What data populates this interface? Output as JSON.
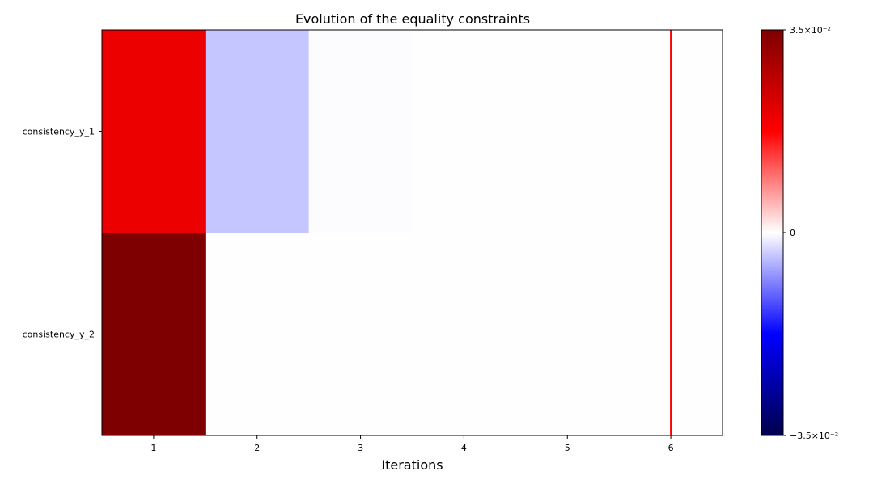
{
  "chart_data": {
    "type": "heatmap",
    "title": "Evolution of the equality constraints",
    "xlabel": "Iterations",
    "ylabel": "",
    "x": [
      1,
      2,
      3,
      4,
      5,
      6
    ],
    "y": [
      "consistency_y_1",
      "consistency_y_2"
    ],
    "values": [
      [
        0.02,
        -0.004,
        -0.0002,
        0.0001,
        -0.0001,
        0.0001
      ],
      [
        0.035,
        -0.0001,
        0.0001,
        0.0001,
        -0.0001,
        0.0001
      ]
    ],
    "colormap": "seismic",
    "clim": [
      -0.035,
      0.035
    ],
    "vline": {
      "x": 6,
      "color": "#ff0000"
    },
    "colorbar": {
      "ticks": [
        {
          "value": 0.035,
          "label": "3.5×10⁻²"
        },
        {
          "value": 0,
          "label": "0"
        },
        {
          "value": -0.035,
          "label": "−3.5×10⁻²"
        }
      ]
    }
  }
}
